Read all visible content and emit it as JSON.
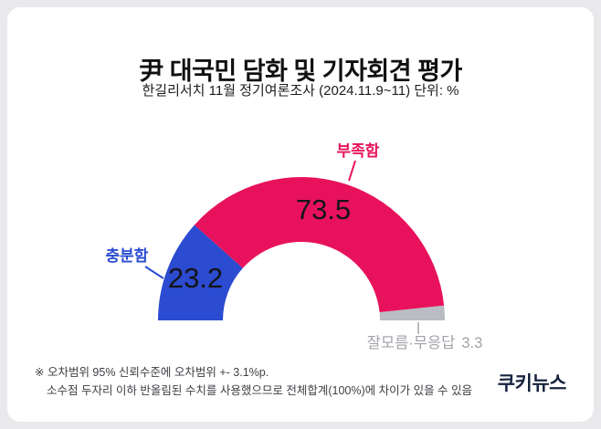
{
  "header": {
    "title": "尹 대국민 담화 및 기자회견 평가",
    "subtitle": "한길리서치 11월 정기여론조사 (2024.11.9~11) 단위: %"
  },
  "chart_data": {
    "type": "pie",
    "variant": "semi-donut",
    "title": "尹 대국민 담화 및 기자회견 평가",
    "unit": "%",
    "total": 100.0,
    "legend_position": "none",
    "value_label_color": "#141418",
    "segments": [
      {
        "key": "sufficient",
        "label": "충분함",
        "value": 23.2,
        "color": "#2b4bd0",
        "label_color": "#2b4bd0"
      },
      {
        "key": "insufficient",
        "label": "부족함",
        "value": 73.5,
        "color": "#e8125c",
        "label_color": "#e8125c"
      },
      {
        "key": "unknown",
        "label": "잘모름·무응답",
        "value": 3.3,
        "color": "#b9bcc2",
        "label_color": "#a0a3a9"
      }
    ]
  },
  "footnote": {
    "line1": "※ 오차범위 95% 신뢰수준에 오차범위 +- 3.1%p.",
    "line2": "소수점 두자리 이하 반올림된 수치를 사용했으므로 전체합계(100%)에 차이가 있을 수 있음"
  },
  "branding": {
    "logo": "쿠키뉴스"
  }
}
